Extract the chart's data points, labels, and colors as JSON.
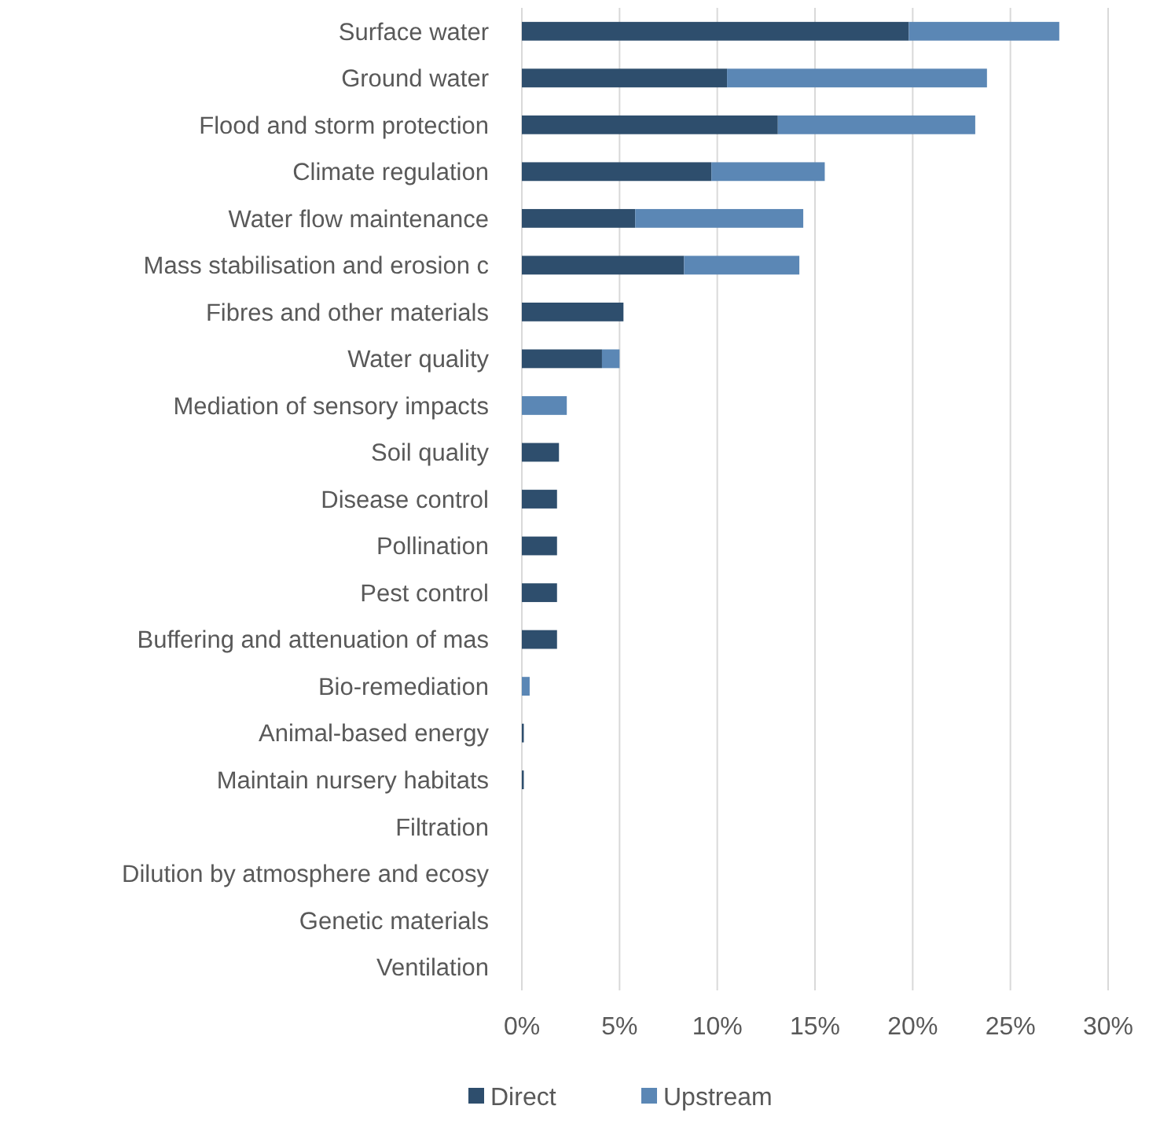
{
  "chart_data": {
    "type": "bar",
    "orientation": "horizontal",
    "stacked": true,
    "categories": [
      "Surface water",
      "Ground water",
      "Flood and storm protection",
      "Climate regulation",
      "Water flow maintenance",
      "Mass stabilisation and erosion c",
      "Fibres and other materials",
      "Water quality",
      "Mediation of sensory impacts",
      "Soil quality",
      "Disease control",
      "Pollination",
      "Pest control",
      "Buffering and attenuation of mas",
      "Bio-remediation",
      "Animal-based energy",
      "Maintain nursery habitats",
      "Filtration",
      "Dilution by atmosphere and ecosy",
      "Genetic materials",
      "Ventilation"
    ],
    "series": [
      {
        "name": "Direct",
        "color": "#2e4e6d",
        "values": [
          19.8,
          10.5,
          13.1,
          9.7,
          5.8,
          8.3,
          5.2,
          4.1,
          0,
          1.9,
          1.8,
          1.8,
          1.8,
          1.8,
          0,
          0.1,
          0.1,
          0,
          0,
          0,
          0
        ]
      },
      {
        "name": "Upstream",
        "color": "#5b87b5",
        "values": [
          7.7,
          13.3,
          10.1,
          5.8,
          8.6,
          5.9,
          0,
          0.9,
          2.3,
          0,
          0,
          0,
          0,
          0,
          0.4,
          0,
          0,
          0,
          0,
          0,
          0
        ]
      }
    ],
    "xlim": [
      0,
      30
    ],
    "xticks": [
      {
        "value": 0,
        "label": "0%"
      },
      {
        "value": 5,
        "label": "5%"
      },
      {
        "value": 10,
        "label": "10%"
      },
      {
        "value": 15,
        "label": "15%"
      },
      {
        "value": 20,
        "label": "20%"
      },
      {
        "value": 25,
        "label": "25%"
      },
      {
        "value": 30,
        "label": "30%"
      }
    ],
    "grid": "x",
    "legend": "bottom"
  }
}
